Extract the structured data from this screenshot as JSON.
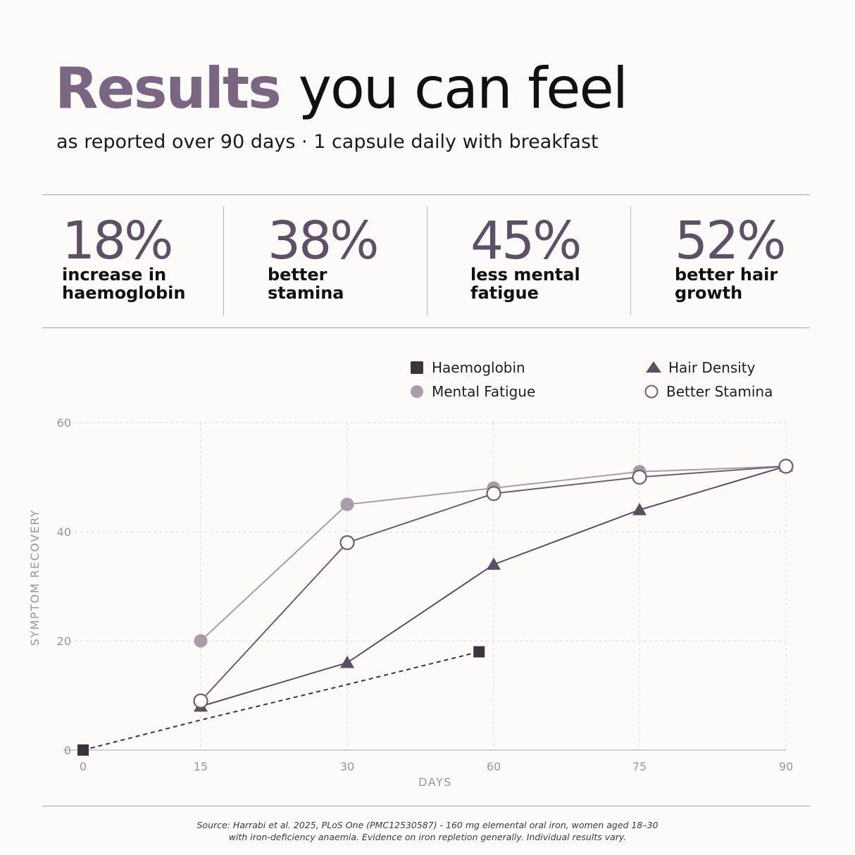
{
  "header": {
    "title_accent": "Results",
    "title_rest": "you can feel",
    "subtitle": "as reported over 90 days · 1 capsule daily with breakfast"
  },
  "stats": [
    {
      "value": "18%",
      "label": "increase in haemoglobin"
    },
    {
      "value": "38%",
      "label": "better stamina"
    },
    {
      "value": "45%",
      "label": "less mental fatigue"
    },
    {
      "value": "52%",
      "label": "better hair growth"
    }
  ],
  "colors": {
    "accent": "#7a6682",
    "stat_value": "#5e4f66",
    "haemoglobin": "#3d333f",
    "mental_fatigue": "#a99caa",
    "hair_density": "#5d4d65",
    "better_stamina": "#6d5c74",
    "grid": "#dcdada",
    "axis_text": "#9a9696"
  },
  "chart_data": {
    "type": "line",
    "xlabel": "DAYS",
    "ylabel": "SYMPTOM RECOVERY",
    "x_ticks": [
      0,
      15,
      30,
      60,
      75,
      90
    ],
    "y_ticks": [
      0,
      20,
      40,
      60
    ],
    "ylim": [
      0,
      60
    ],
    "x_scale": "categorical-spaced",
    "grid": true,
    "legend_position": "top-right",
    "series": [
      {
        "name": "Haemoglobin",
        "marker": "square",
        "line": "dashed",
        "points": [
          {
            "x": 0,
            "y": 0
          },
          {
            "x": 15,
            "y": 5.5
          },
          {
            "x": 30,
            "y": 12
          },
          {
            "x": 57,
            "y": 18
          }
        ],
        "marker_points": [
          {
            "x": 0,
            "y": 0
          },
          {
            "x": 57,
            "y": 18
          }
        ]
      },
      {
        "name": "Mental Fatigue",
        "marker": "filled-circle",
        "line": "solid",
        "points": [
          {
            "x": 15,
            "y": 20
          },
          {
            "x": 30,
            "y": 45
          },
          {
            "x": 60,
            "y": 48
          },
          {
            "x": 75,
            "y": 51
          },
          {
            "x": 90,
            "y": 52
          }
        ]
      },
      {
        "name": "Hair Density",
        "marker": "triangle",
        "line": "solid",
        "points": [
          {
            "x": 15,
            "y": 8
          },
          {
            "x": 30,
            "y": 16
          },
          {
            "x": 60,
            "y": 34
          },
          {
            "x": 75,
            "y": 44
          },
          {
            "x": 90,
            "y": 52
          }
        ]
      },
      {
        "name": "Better Stamina",
        "marker": "open-circle",
        "line": "solid",
        "points": [
          {
            "x": 15,
            "y": 9
          },
          {
            "x": 30,
            "y": 38
          },
          {
            "x": 60,
            "y": 47
          },
          {
            "x": 75,
            "y": 50
          },
          {
            "x": 90,
            "y": 52
          }
        ]
      }
    ]
  },
  "footer": {
    "source_line1": "Source: Harrabi et al. 2025, PLoS One (PMC12530587) - 160 mg elemental oral iron, women aged 18–30",
    "source_line2": "with iron-deficiency anaemia. Evidence on iron repletion generally. Individual results vary."
  }
}
